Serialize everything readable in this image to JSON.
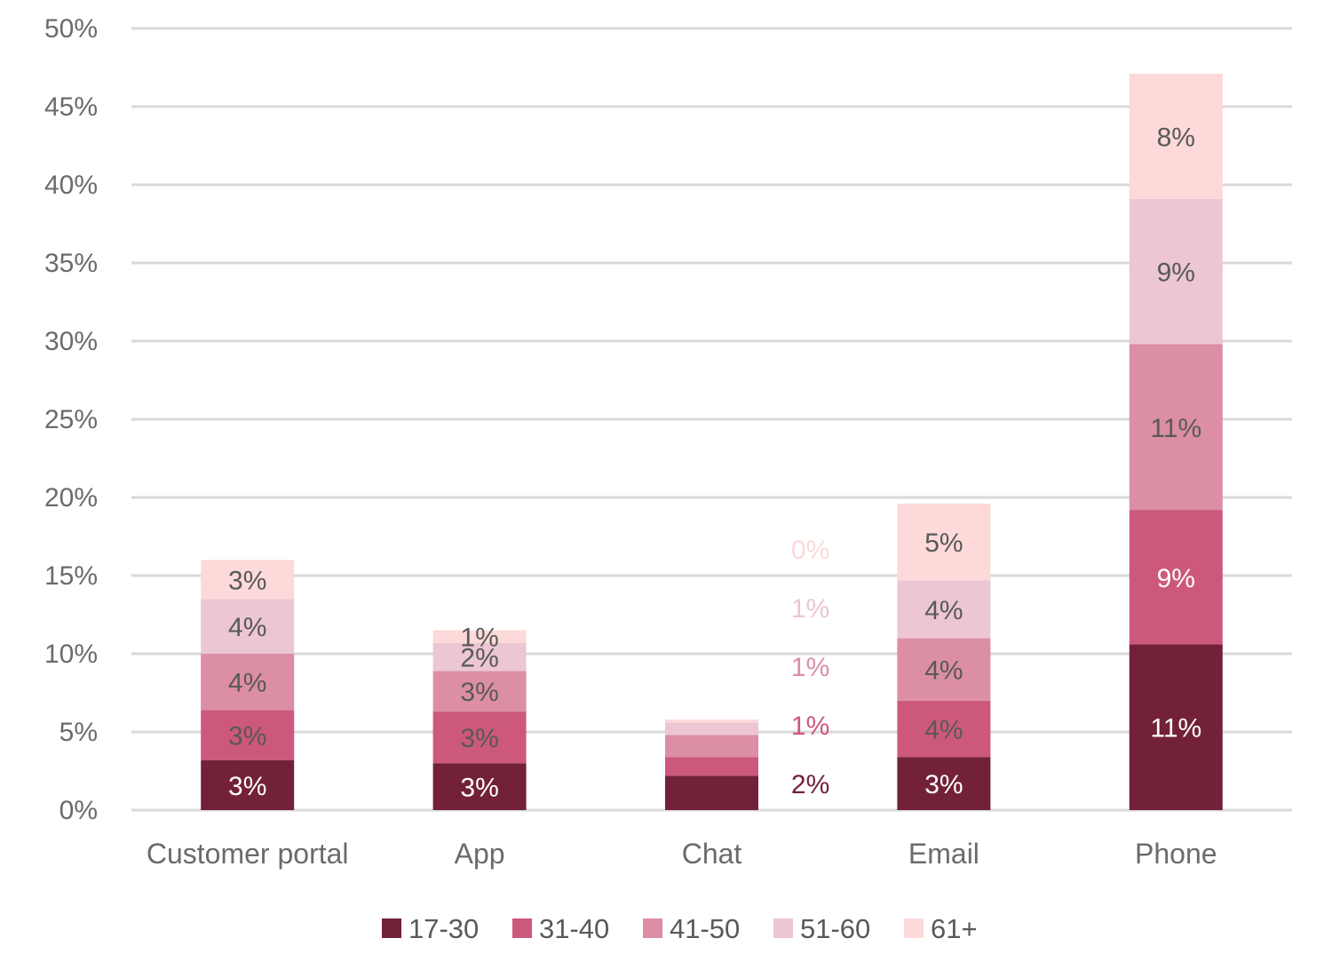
{
  "chart_data": {
    "type": "bar",
    "stacked": true,
    "categories": [
      "Customer portal",
      "App",
      "Chat",
      "Email",
      "Phone"
    ],
    "series": [
      {
        "name": "17-30",
        "color": "#722139",
        "values": [
          3.2,
          3.0,
          2.2,
          3.4,
          10.6
        ],
        "labels": [
          "3%",
          "3%",
          "2%",
          "3%",
          "11%"
        ]
      },
      {
        "name": "31-40",
        "color": "#cc587b",
        "values": [
          3.2,
          3.3,
          1.2,
          3.6,
          8.6
        ],
        "labels": [
          "3%",
          "3%",
          "1%",
          "4%",
          "9%"
        ]
      },
      {
        "name": "41-50",
        "color": "#dc8ea4",
        "values": [
          3.6,
          2.6,
          1.4,
          4.0,
          10.6
        ],
        "labels": [
          "4%",
          "3%",
          "1%",
          "4%",
          "11%"
        ]
      },
      {
        "name": "51-60",
        "color": "#ecc6d3",
        "values": [
          3.5,
          1.8,
          0.8,
          3.7,
          9.3
        ],
        "labels": [
          "4%",
          "2%",
          "1%",
          "4%",
          "9%"
        ]
      },
      {
        "name": "61+",
        "color": "#fdd9d9",
        "values": [
          2.5,
          0.8,
          0.2,
          4.9,
          8.0
        ],
        "labels": [
          "3%",
          "1%",
          "0%",
          "5%",
          "8%"
        ]
      }
    ],
    "ylim": [
      0,
      50
    ],
    "yticks": [
      0,
      5,
      10,
      15,
      20,
      25,
      30,
      35,
      40,
      45,
      50
    ],
    "ytick_labels": [
      "0%",
      "5%",
      "10%",
      "15%",
      "20%",
      "25%",
      "30%",
      "35%",
      "40%",
      "45%",
      "50%"
    ],
    "grid": true,
    "legend": "bottom",
    "label_colors": {
      "dark_text": "#595959",
      "light_text": "#ffffff"
    }
  }
}
